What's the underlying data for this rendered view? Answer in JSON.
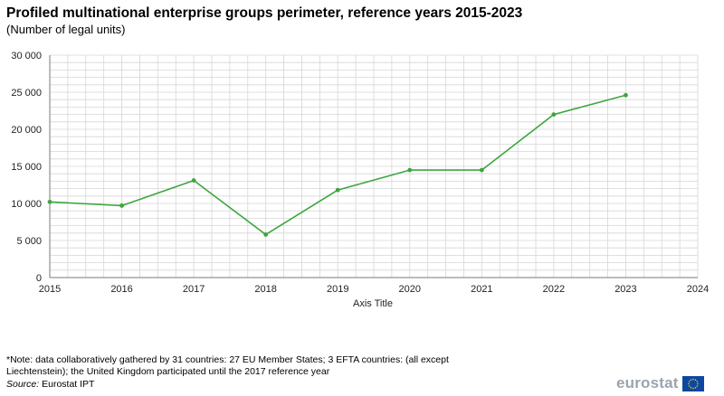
{
  "title": "Profiled multinational enterprise groups perimeter, reference years  2015-2023",
  "subtitle": "(Number  of legal units)",
  "footer": {
    "note": "*Note: data collaboratively gathered  by  31 countries: 27 EU Member States; 3 EFTA countries: (all except Liechtenstein);  the United Kingdom participated until the 2017 reference year",
    "source_label": "Source:",
    "source_text": " Eurostat IPT",
    "logo_text": "eurostat"
  },
  "colors": {
    "line": "#3ea53e",
    "grid": "#d6d6d6",
    "axis": "#7a7a7a",
    "flag_blue": "#0e47a1",
    "flag_star": "#f4d000"
  },
  "chart_data": {
    "type": "line",
    "title": "Profiled multinational enterprise groups perimeter, reference years  2015-2023",
    "xlabel": "Axis Title",
    "ylabel": "",
    "x": [
      2015,
      2016,
      2017,
      2018,
      2019,
      2020,
      2021,
      2022,
      2023
    ],
    "series": [
      {
        "name": "Number of legal units",
        "values": [
          10200,
          9700,
          13100,
          5800,
          11800,
          14500,
          14500,
          22000,
          24600
        ]
      }
    ],
    "xlim": [
      2015,
      2024
    ],
    "ylim": [
      0,
      30000
    ],
    "x_ticks": [
      "2015",
      "2016",
      "2017",
      "2018",
      "2019",
      "2020",
      "2021",
      "2022",
      "2023",
      "2024"
    ],
    "y_ticks": [
      {
        "value": 0,
        "label": "0"
      },
      {
        "value": 5000,
        "label": "5 000"
      },
      {
        "value": 10000,
        "label": "10 000"
      },
      {
        "value": 15000,
        "label": "15 000"
      },
      {
        "value": 20000,
        "label": "20 000"
      },
      {
        "value": 25000,
        "label": "25 000"
      },
      {
        "value": 30000,
        "label": "30 000"
      }
    ],
    "grid": true,
    "legend": "none"
  }
}
